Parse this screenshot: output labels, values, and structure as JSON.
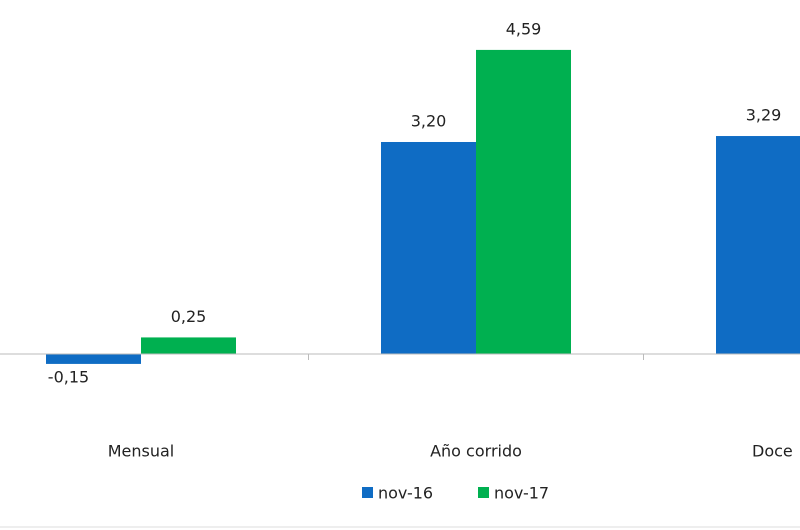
{
  "chart_data": {
    "type": "bar",
    "categories": [
      "Mensual",
      "Año corrido",
      "Doce"
    ],
    "series": [
      {
        "name": "nov-16",
        "color": "#0f6cc4",
        "values": [
          -0.15,
          3.2,
          3.29
        ],
        "value_labels": [
          "-0,15",
          "3,20",
          "3,29"
        ]
      },
      {
        "name": "nov-17",
        "color": "#00b050",
        "values": [
          0.25,
          4.59,
          null
        ],
        "value_labels": [
          "0,25",
          "4,59",
          null
        ]
      }
    ],
    "ylim": [
      -2.5,
      5.2
    ]
  }
}
